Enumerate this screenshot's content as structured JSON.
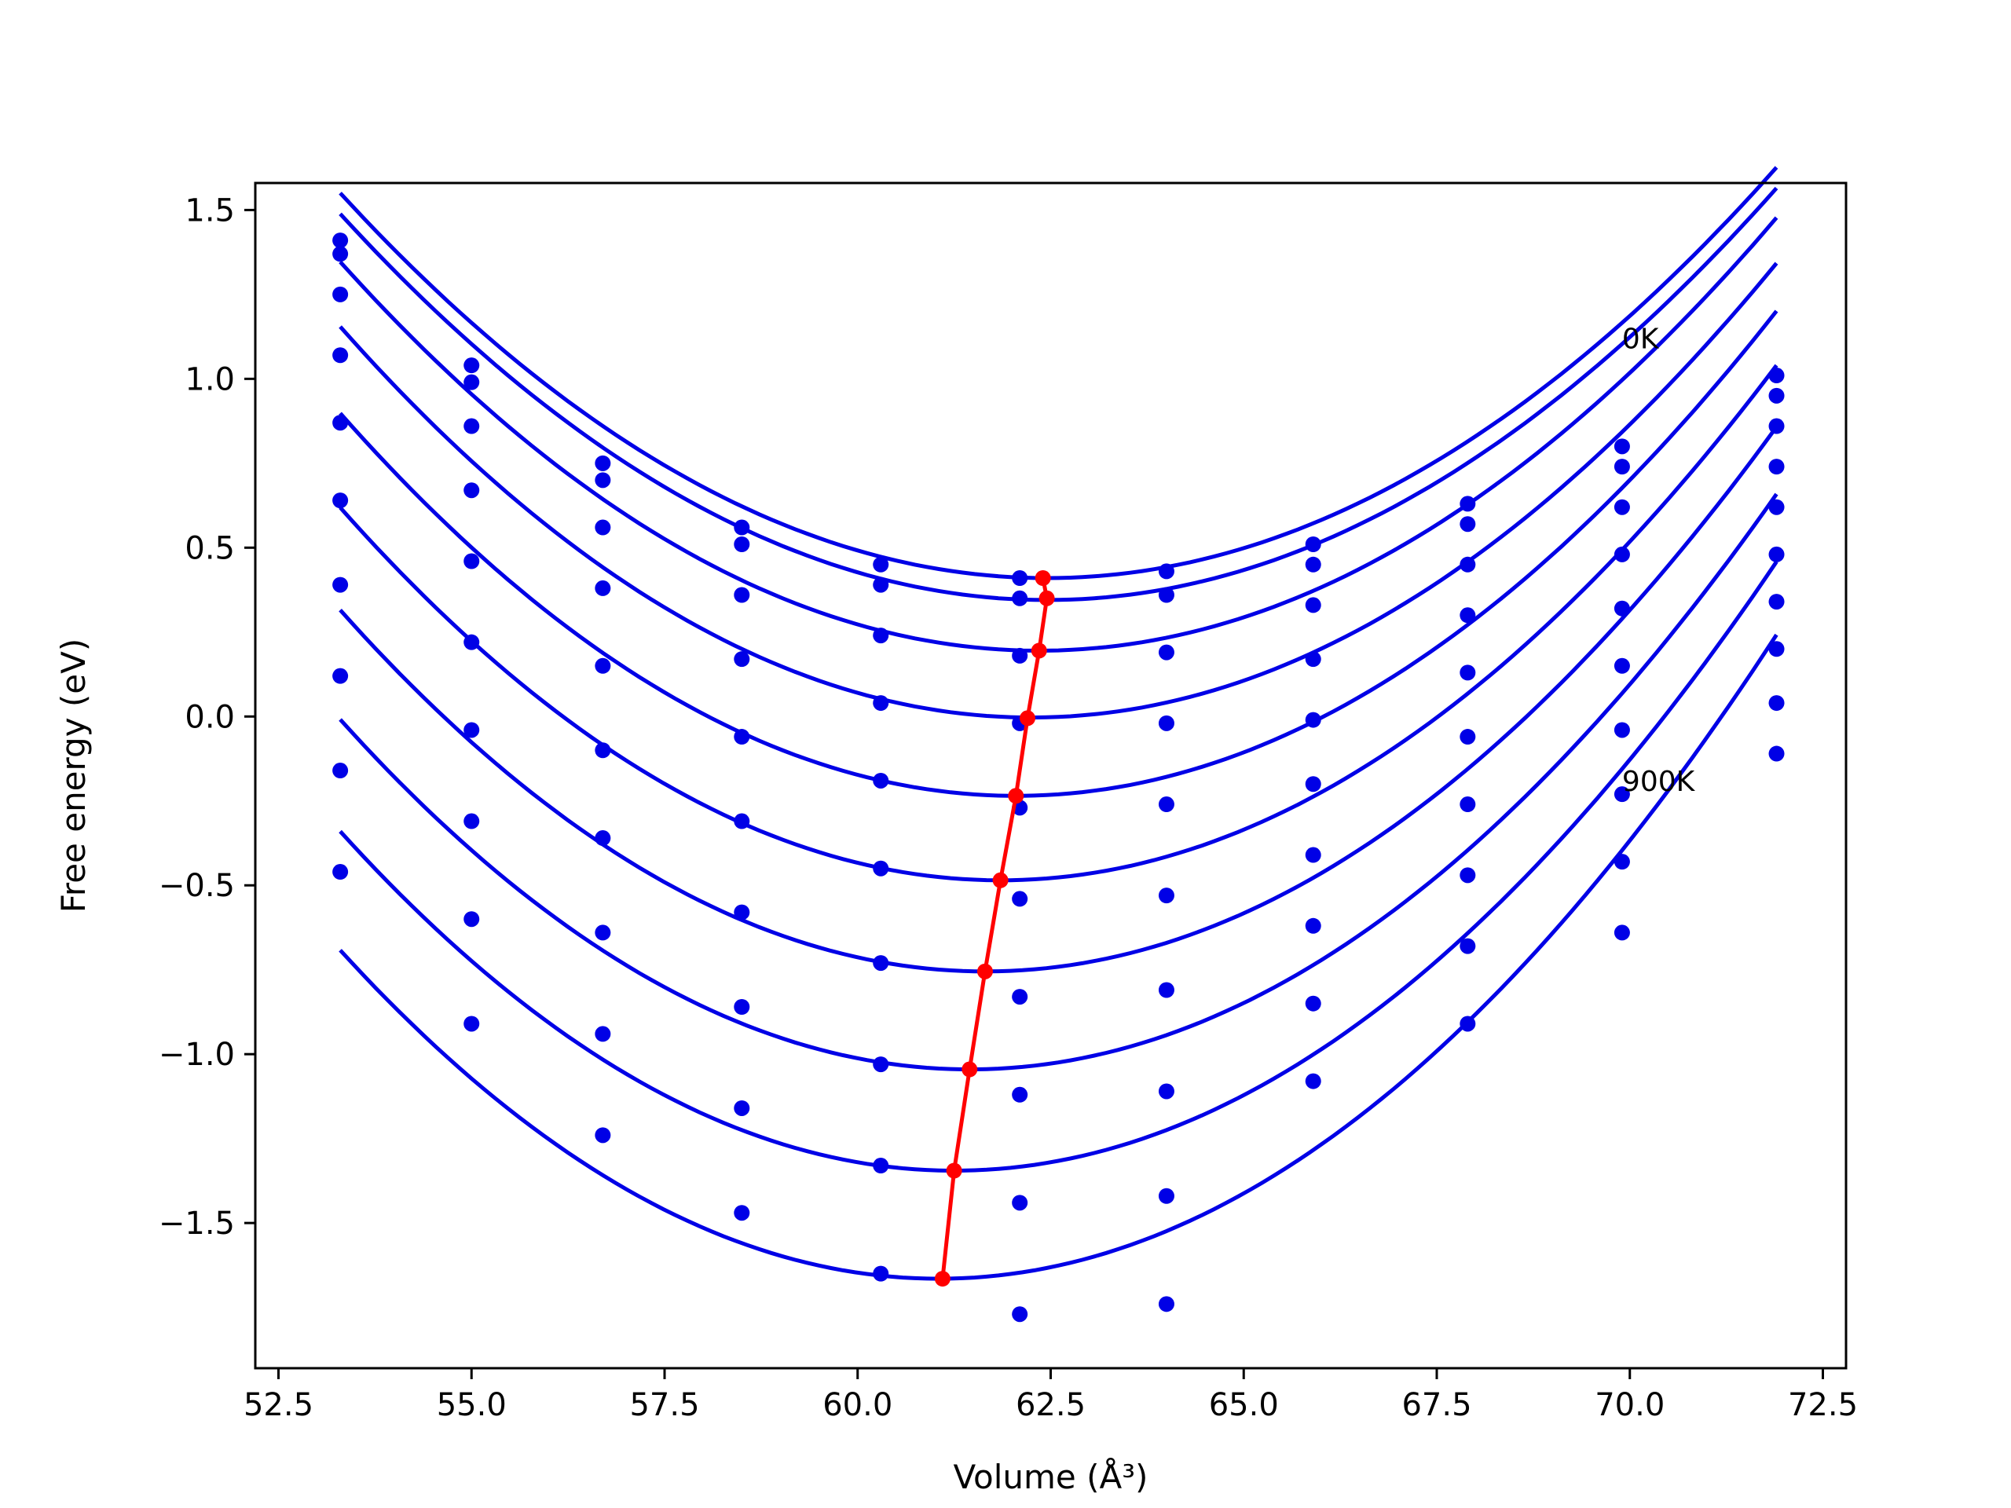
{
  "chart_data": {
    "type": "scatter",
    "xlabel": "Volume (Å³)",
    "ylabel": "Free energy (eV)",
    "xlim": [
      52.2,
      72.8
    ],
    "ylim": [
      -1.93,
      1.58
    ],
    "grid": false,
    "xticks": [
      52.5,
      55.0,
      57.5,
      60.0,
      62.5,
      65.0,
      67.5,
      70.0,
      72.5
    ],
    "xtick_labels": [
      "52.5",
      "55.0",
      "57.5",
      "60.0",
      "62.5",
      "65.0",
      "67.5",
      "70.0",
      "72.5"
    ],
    "yticks": [
      1.5,
      1.0,
      0.5,
      0.0,
      -0.5,
      -1.0,
      -1.5
    ],
    "ytick_labels": [
      "1.5",
      "1.0",
      "0.5",
      "0.0",
      "−0.5",
      "−1.0",
      "−1.5"
    ],
    "annotations": [
      {
        "text": "0K",
        "x": 69.9,
        "y": 1.09
      },
      {
        "text": "900K",
        "x": 69.9,
        "y": -0.22
      }
    ],
    "volumes": [
      53.3,
      55.0,
      56.7,
      58.5,
      60.3,
      62.1,
      64.0,
      65.9,
      67.9,
      69.9,
      71.9
    ],
    "series": [
      {
        "values": [
          1.41,
          1.04,
          0.75,
          0.56,
          0.45,
          0.41,
          0.43,
          0.51,
          0.63,
          0.8,
          1.01
        ],
        "fit": {
          "a": 0.01362,
          "v0": 62.45,
          "e0": 0.41
        }
      },
      {
        "values": [
          1.37,
          0.99,
          0.7,
          0.51,
          0.39,
          0.35,
          0.36,
          0.45,
          0.57,
          0.74,
          0.95
        ],
        "fit": {
          "a": 0.01366,
          "v0": 62.45,
          "e0": 0.345
        }
      },
      {
        "values": [
          1.25,
          0.86,
          0.56,
          0.36,
          0.24,
          0.18,
          0.19,
          0.33,
          0.45,
          0.62,
          0.86
        ],
        "fit": {
          "a": 0.01406,
          "v0": 62.35,
          "e0": 0.195
        }
      },
      {
        "values": [
          1.07,
          0.67,
          0.38,
          0.17,
          0.04,
          -0.02,
          -0.02,
          0.17,
          0.3,
          0.48,
          0.74
        ],
        "fit": {
          "a": 0.01445,
          "v0": 62.25,
          "e0": -0.003
        }
      },
      {
        "values": [
          0.87,
          0.46,
          0.15,
          -0.06,
          -0.19,
          -0.27,
          -0.26,
          -0.01,
          0.13,
          0.32,
          0.62
        ],
        "fit": {
          "a": 0.0148,
          "v0": 62.05,
          "e0": -0.235
        }
      },
      {
        "values": [
          0.64,
          0.22,
          -0.1,
          -0.31,
          -0.45,
          -0.54,
          -0.53,
          -0.2,
          -0.06,
          0.15,
          0.48
        ],
        "fit": {
          "a": 0.0151,
          "v0": 61.85,
          "e0": -0.485
        }
      },
      {
        "values": [
          0.39,
          -0.04,
          -0.36,
          -0.58,
          -0.73,
          -0.83,
          -0.81,
          -0.41,
          -0.26,
          -0.04,
          0.34
        ],
        "fit": {
          "a": 0.01535,
          "v0": 61.65,
          "e0": -0.755
        }
      },
      {
        "values": [
          0.12,
          -0.31,
          -0.64,
          -0.86,
          -1.03,
          -1.12,
          -1.11,
          -0.62,
          -0.47,
          -0.23,
          0.2
        ],
        "fit": {
          "a": 0.0156,
          "v0": 61.45,
          "e0": -1.045
        }
      },
      {
        "values": [
          -0.16,
          -0.6,
          -0.94,
          -1.16,
          -1.33,
          -1.44,
          -1.42,
          -0.85,
          -0.68,
          -0.43,
          0.04
        ],
        "fit": {
          "a": 0.0159,
          "v0": 61.25,
          "e0": -1.345
        }
      },
      {
        "values": [
          -0.46,
          -0.91,
          -1.24,
          -1.47,
          -1.65,
          -1.77,
          -1.74,
          -1.08,
          -0.91,
          -0.64,
          -0.11
        ],
        "fit": {
          "a": 0.0162,
          "v0": 61.05,
          "e0": -1.665
        }
      }
    ],
    "minima": {
      "x": [
        62.4,
        62.45,
        62.35,
        62.2,
        62.05,
        61.85,
        61.65,
        61.45,
        61.25,
        61.1
      ],
      "y": [
        0.41,
        0.35,
        0.195,
        -0.005,
        -0.235,
        -0.485,
        -0.755,
        -1.045,
        -1.345,
        -1.665
      ]
    },
    "colors": {
      "points": "#0000e6",
      "fits": "#0000e6",
      "minima": "#ff0000"
    }
  }
}
